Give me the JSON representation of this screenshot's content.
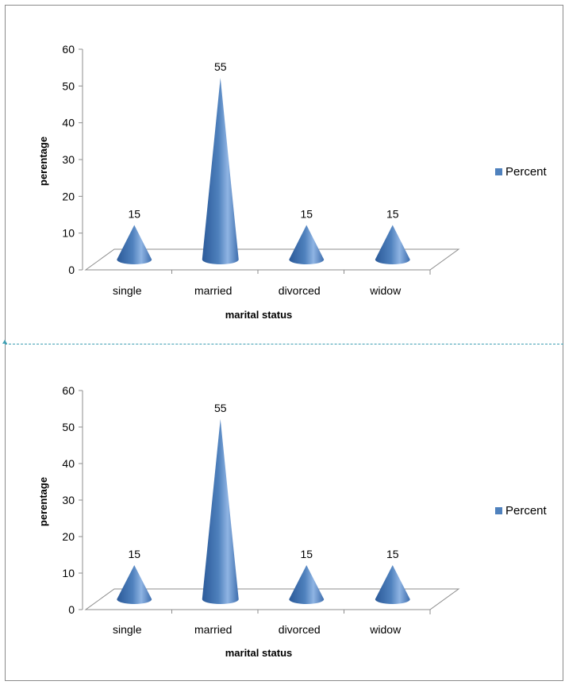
{
  "chart_data": [
    {
      "type": "bar",
      "style": "3d-cone",
      "categories": [
        "single",
        "married",
        "divorced",
        "widow"
      ],
      "series": [
        {
          "name": "Percent",
          "values": [
            15,
            55,
            15,
            15
          ]
        }
      ],
      "data_labels": [
        "15",
        "55",
        "15",
        "15"
      ],
      "xlabel": "marital status",
      "ylabel": "perentage",
      "ylim": [
        0,
        60
      ],
      "yticks": [
        0,
        10,
        20,
        30,
        40,
        50,
        60
      ],
      "legend": "right",
      "color": "#4f81bd"
    },
    {
      "type": "bar",
      "style": "3d-cone",
      "categories": [
        "single",
        "married",
        "divorced",
        "widow"
      ],
      "series": [
        {
          "name": "Percent",
          "values": [
            15,
            55,
            15,
            15
          ]
        }
      ],
      "data_labels": [
        "15",
        "55",
        "15",
        "15"
      ],
      "xlabel": "marital status",
      "ylabel": "perentage",
      "ylim": [
        0,
        60
      ],
      "yticks": [
        0,
        10,
        20,
        30,
        40,
        50,
        60
      ],
      "legend": "right",
      "color": "#4f81bd"
    }
  ]
}
